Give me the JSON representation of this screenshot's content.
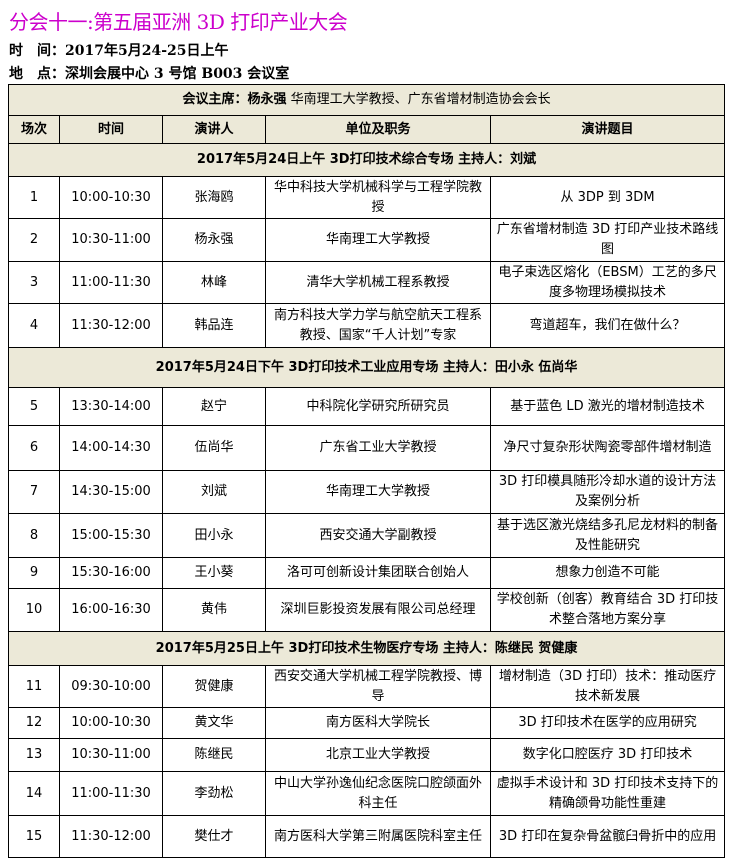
{
  "title": "分会十一:第五届亚洲 3D 打印产业大会",
  "time_label": "时　间：",
  "time": "2017年5月24-25日上午",
  "place_label": "地　点：",
  "place": "深圳会展中心 3 号馆 B003 会议室",
  "chair_label": "会议主席：杨永强",
  "chair": "华南理工大学教授、广东省增材制造协会会长",
  "headers": [
    "场次",
    "时间",
    "演讲人",
    "单位及职务",
    "演讲题目"
  ],
  "colors": {
    "title": "#cc00cc",
    "header_bg": "#ece9d8"
  },
  "sections": [
    {
      "title": "2017年5月24日上午 3D打印技术综合专场 主持人：刘斌",
      "rows": [
        [
          "1",
          "10:00-10:30",
          "张海鸥",
          "华中科技大学机械科学与工程学院教授",
          "从 3DP 到 3DM"
        ],
        [
          "2",
          "10:30-11:00",
          "杨永强",
          "华南理工大学教授",
          "广东省增材制造 3D 打印产业技术路线图"
        ],
        [
          "3",
          "11:00-11:30",
          "林峰",
          "清华大学机械工程系教授",
          "电子束选区熔化（EBSM）工艺的多尺度多物理场模拟技术"
        ],
        [
          "4",
          "11:30-12:00",
          "韩品连",
          "南方科技大学力学与航空航天工程系教授、国家“千人计划”专家",
          "弯道超车，我们在做什么？"
        ]
      ]
    },
    {
      "title": "2017年5月24日下午 3D打印技术工业应用专场 主持人：田小永 伍尚华",
      "rows": [
        [
          "5",
          "13:30-14:00",
          "赵宁",
          "中科院化学研究所研究员",
          "基于蓝色 LD 激光的增材制造技术"
        ],
        [
          "6",
          "14:00-14:30",
          "伍尚华",
          "广东省工业大学教授",
          "净尺寸复杂形状陶瓷零部件增材制造"
        ],
        [
          "7",
          "14:30-15:00",
          "刘斌",
          "华南理工大学教授",
          "3D 打印模具随形冷却水道的设计方法及案例分析"
        ],
        [
          "8",
          "15:00-15:30",
          "田小永",
          "西安交通大学副教授",
          "基于选区激光烧结多孔尼龙材料的制备及性能研究"
        ],
        [
          "9",
          "15:30-16:00",
          "王小葵",
          "洛可可创新设计集团联合创始人",
          "想象力创造不可能"
        ],
        [
          "10",
          "16:00-16:30",
          "黄伟",
          "深圳巨影投资发展有限公司总经理",
          "学校创新（创客）教育结合 3D 打印技术整合落地方案分享"
        ]
      ]
    },
    {
      "title": "2017年5月25日上午 3D打印技术生物医疗专场 主持人：陈继民 贺健康",
      "rows": [
        [
          "11",
          "09:30-10:00",
          "贺健康",
          "西安交通大学机械工程学院教授、博导",
          "增材制造（3D 打印）技术：推动医疗技术新发展"
        ],
        [
          "12",
          "10:00-10:30",
          "黄文华",
          "南方医科大学院长",
          "3D 打印技术在医学的应用研究"
        ],
        [
          "13",
          "10:30-11:00",
          "陈继民",
          "北京工业大学教授",
          "数字化口腔医疗 3D 打印技术"
        ],
        [
          "14",
          "11:00-11:30",
          "李劲松",
          "中山大学孙逸仙纪念医院口腔颌面外科主任",
          "虚拟手术设计和 3D 打印技术支持下的精确颌骨功能性重建"
        ],
        [
          "15",
          "11:30-12:00",
          "樊仕才",
          "南方医科大学第三附属医院科室主任",
          "3D 打印在复杂骨盆髋臼骨折中的应用"
        ]
      ]
    }
  ]
}
